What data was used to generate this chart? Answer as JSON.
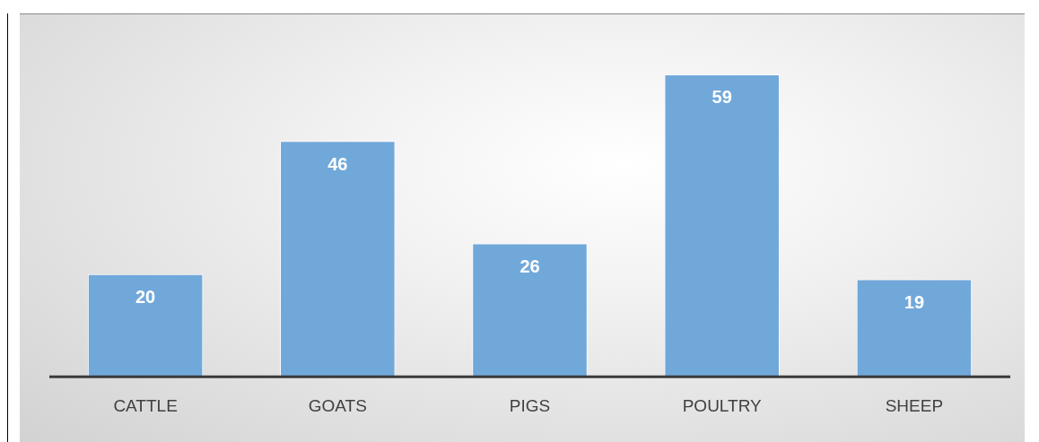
{
  "chart_data": {
    "type": "bar",
    "categories": [
      "CATTLE",
      "GOATS",
      "PIGS",
      "POULTRY",
      "SHEEP"
    ],
    "values": [
      20,
      46,
      26,
      59,
      19
    ],
    "color": "#71a8da",
    "data_labels": true,
    "grid": false,
    "legend": false
  }
}
